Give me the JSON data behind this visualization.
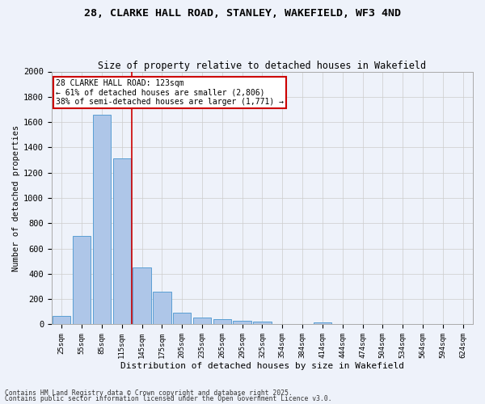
{
  "title_line1": "28, CLARKE HALL ROAD, STANLEY, WAKEFIELD, WF3 4ND",
  "title_line2": "Size of property relative to detached houses in Wakefield",
  "xlabel": "Distribution of detached houses by size in Wakefield",
  "ylabel": "Number of detached properties",
  "categories": [
    "25sqm",
    "55sqm",
    "85sqm",
    "115sqm",
    "145sqm",
    "175sqm",
    "205sqm",
    "235sqm",
    "265sqm",
    "295sqm",
    "325sqm",
    "354sqm",
    "384sqm",
    "414sqm",
    "444sqm",
    "474sqm",
    "504sqm",
    "534sqm",
    "564sqm",
    "594sqm",
    "624sqm"
  ],
  "values": [
    65,
    700,
    1660,
    1310,
    450,
    255,
    90,
    55,
    40,
    28,
    22,
    0,
    0,
    18,
    0,
    0,
    0,
    0,
    0,
    0,
    0
  ],
  "bar_color": "#aec6e8",
  "bar_edge_color": "#5a9fd4",
  "redline_x": 3.5,
  "annotation_title": "28 CLARKE HALL ROAD: 123sqm",
  "annotation_line2": "← 61% of detached houses are smaller (2,806)",
  "annotation_line3": "38% of semi-detached houses are larger (1,771) →",
  "annotation_box_color": "#ffffff",
  "annotation_box_edge": "#cc0000",
  "redline_color": "#cc0000",
  "grid_color": "#cccccc",
  "bg_color": "#eef2fa",
  "footnote1": "Contains HM Land Registry data © Crown copyright and database right 2025.",
  "footnote2": "Contains public sector information licensed under the Open Government Licence v3.0.",
  "ylim": [
    0,
    2000
  ],
  "yticks": [
    0,
    200,
    400,
    600,
    800,
    1000,
    1200,
    1400,
    1600,
    1800,
    2000
  ]
}
